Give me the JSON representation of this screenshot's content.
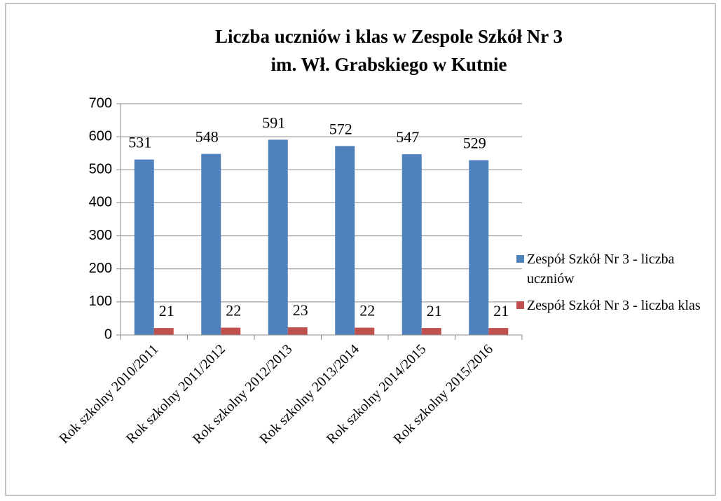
{
  "chart_data": {
    "type": "bar",
    "title": "Liczba uczniów i klas w Zespole Szkół Nr 3",
    "subtitle": "im. Wł. Grabskiego w Kutnie",
    "categories": [
      "Rok szkolny 2010/2011",
      "Rok szkolny 2011/2012",
      "Rok szkolny 2012/2013",
      "Rok szkolny 2013/2014",
      "Rok szkolny 2014/2015",
      "Rok szkolny 2015/2016"
    ],
    "series": [
      {
        "name": "Zespół Szkół Nr 3 - liczba uczniów",
        "color": "#4f81bd",
        "values": [
          531,
          548,
          591,
          572,
          547,
          529
        ]
      },
      {
        "name": "Zespół Szkół Nr 3 - liczba klas",
        "color": "#c0504d",
        "values": [
          21,
          22,
          23,
          22,
          21,
          21
        ]
      }
    ],
    "ylim": [
      0,
      700
    ],
    "yticks": [
      0,
      100,
      200,
      300,
      400,
      500,
      600,
      700
    ],
    "grid": true,
    "legend": "right"
  }
}
